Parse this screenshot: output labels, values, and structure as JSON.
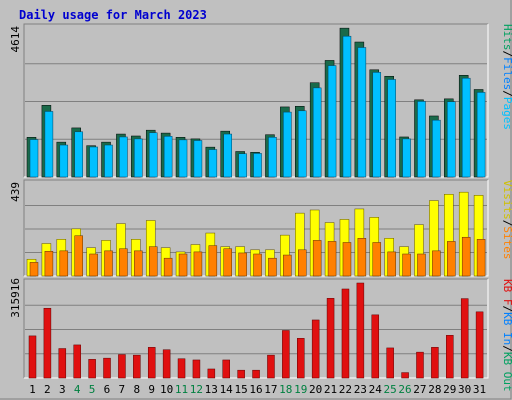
{
  "colors": {
    "background": "#c0c0c0",
    "pages_front": "#00c0ff",
    "pages_back": "#008080",
    "files_back": "#1a6a4a",
    "visits_front": "#ffff00",
    "visits_back": "#b0a000",
    "sites_front": "#ff8000",
    "sites_back": "#a05000",
    "kbin_front": "#e01010",
    "weekday_label": "#000000",
    "weekend_label": "#008040"
  },
  "chart_data": {
    "type": "bar",
    "title": "Daily usage for March 2023",
    "categories": [
      "1",
      "2",
      "3",
      "4",
      "5",
      "6",
      "7",
      "8",
      "9",
      "10",
      "11",
      "12",
      "13",
      "14",
      "15",
      "16",
      "17",
      "18",
      "19",
      "20",
      "21",
      "22",
      "23",
      "24",
      "25",
      "26",
      "27",
      "28",
      "29",
      "30",
      "31"
    ],
    "weekend_days": [
      "4",
      "5",
      "11",
      "12",
      "18",
      "19",
      "25",
      "26"
    ],
    "panels": [
      {
        "ymax_label": "4614",
        "ylim": [
          0,
          4614
        ],
        "legend": [
          {
            "text": "Hits",
            "color": "#00a060"
          },
          {
            "text": "/",
            "color": "#000000"
          },
          {
            "text": "Files",
            "color": "#0080ff"
          },
          {
            "text": "/",
            "color": "#000000"
          },
          {
            "text": "Pages",
            "color": "#00c0ff"
          }
        ],
        "series": [
          {
            "name": "Hits",
            "values": [
              1230,
              2220,
              1080,
              1520,
              970,
              1080,
              1330,
              1270,
              1450,
              1360,
              1230,
              1180,
              925,
              1420,
              790,
              765,
              1310,
              2170,
              2190,
              2920,
              3610,
              4610,
              4180,
              3320,
              3120,
              1240,
              2390,
              1890,
              2420,
              3150,
              2710
            ]
          },
          {
            "name": "Files",
            "values": [
              1160,
              2030,
              990,
              1400,
              930,
              990,
              1240,
              1180,
              1370,
              1260,
              1150,
              1130,
              850,
              1330,
              720,
              730,
              1230,
              2010,
              2050,
              2760,
              3450,
              4360,
              4010,
              3240,
              3020,
              1180,
              2340,
              1760,
              2330,
              3060,
              2620
            ]
          }
        ]
      },
      {
        "ymax_label": "439",
        "ylim": [
          0,
          439
        ],
        "legend": [
          {
            "text": "Visits",
            "color": "#d0c000"
          },
          {
            "text": "/",
            "color": "#000000"
          },
          {
            "text": "Sites",
            "color": "#ff8000"
          }
        ],
        "series": [
          {
            "name": "Visits",
            "values": [
              80,
              155,
              175,
              225,
              135,
              170,
              250,
              175,
              265,
              135,
              115,
              150,
              205,
              140,
              140,
              125,
              125,
              195,
              300,
              315,
              255,
              270,
              320,
              280,
              180,
              140,
              245,
              360,
              390,
              400,
              385
            ]
          },
          {
            "name": "Sites",
            "values": [
              65,
              118,
              120,
              192,
              105,
              120,
              130,
              120,
              140,
              85,
              105,
              115,
              145,
              130,
              110,
              105,
              85,
              100,
              125,
              170,
              165,
              160,
              180,
              160,
              115,
              105,
              105,
              120,
              165,
              185,
              175
            ]
          }
        ]
      },
      {
        "ymax_label": "315916",
        "ylim": [
          0,
          315916
        ],
        "legend": [
          {
            "text": "KB F",
            "color": "#e01010"
          },
          {
            "text": "/",
            "color": "#000000"
          },
          {
            "text": "KB In",
            "color": "#0080ff"
          },
          {
            "text": "/",
            "color": "#000000"
          },
          {
            "text": "KB Out",
            "color": "#00a060"
          }
        ],
        "series": [
          {
            "name": "KB F",
            "values": [
              140000,
              232000,
              98000,
              110000,
              62000,
              66000,
              78000,
              76000,
              102000,
              94000,
              64000,
              60000,
              30000,
              60000,
              26000,
              26000,
              76000,
              158000,
              132000,
              193000,
              265000,
              296000,
              315916,
              210000,
              100000,
              18000,
              86000,
              102000,
              142000,
              264000,
              220000
            ]
          }
        ]
      }
    ]
  }
}
